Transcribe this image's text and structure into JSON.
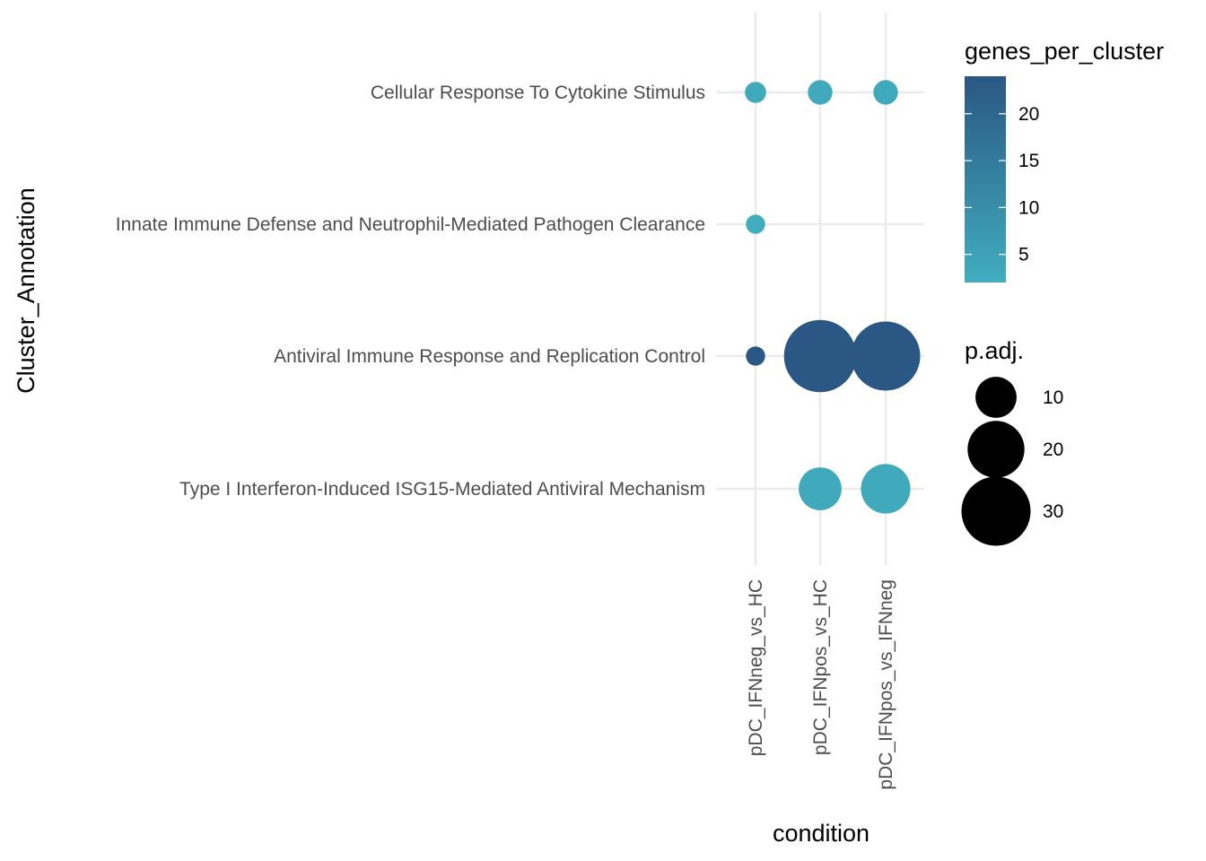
{
  "chart_data": {
    "type": "scatter",
    "xlabel": "condition",
    "ylabel": "Cluster_Annotation",
    "x_categories": [
      "pDC_IFNneg_vs_HC",
      "pDC_IFNpos_vs_HC",
      "pDC_IFNpos_vs_IFNneg"
    ],
    "y_categories": [
      "Cellular Response To Cytokine Stimulus",
      "Innate Immune Defense and Neutrophil-Mediated Pathogen Clearance",
      "Antiviral Immune Response and Replication Control",
      "Type I Interferon-Induced ISG15-Mediated Antiviral Mechanism"
    ],
    "points": [
      {
        "x": "pDC_IFNneg_vs_HC",
        "y": "Cellular Response To Cytokine Stimulus",
        "genes_per_cluster": 3,
        "p_adj": 2
      },
      {
        "x": "pDC_IFNpos_vs_HC",
        "y": "Cellular Response To Cytokine Stimulus",
        "genes_per_cluster": 3,
        "p_adj": 3
      },
      {
        "x": "pDC_IFNpos_vs_IFNneg",
        "y": "Cellular Response To Cytokine Stimulus",
        "genes_per_cluster": 3,
        "p_adj": 3
      },
      {
        "x": "pDC_IFNneg_vs_HC",
        "y": "Innate Immune Defense and Neutrophil-Mediated Pathogen Clearance",
        "genes_per_cluster": 2,
        "p_adj": 1.5
      },
      {
        "x": "pDC_IFNneg_vs_HC",
        "y": "Antiviral Immune Response and Replication Control",
        "genes_per_cluster": 24,
        "p_adj": 1.5
      },
      {
        "x": "pDC_IFNpos_vs_HC",
        "y": "Antiviral Immune Response and Replication Control",
        "genes_per_cluster": 24,
        "p_adj": 33
      },
      {
        "x": "pDC_IFNpos_vs_IFNneg",
        "y": "Antiviral Immune Response and Replication Control",
        "genes_per_cluster": 24,
        "p_adj": 30
      },
      {
        "x": "pDC_IFNpos_vs_HC",
        "y": "Type I Interferon-Induced ISG15-Mediated Antiviral Mechanism",
        "genes_per_cluster": 3,
        "p_adj": 11
      },
      {
        "x": "pDC_IFNpos_vs_IFNneg",
        "y": "Type I Interferon-Induced ISG15-Mediated Antiviral Mechanism",
        "genes_per_cluster": 3,
        "p_adj": 15
      }
    ],
    "color_legend": {
      "title": "genes_per_cluster",
      "range": [
        2,
        24
      ],
      "breaks": [
        5,
        10,
        15,
        20
      ],
      "break_labels": [
        "5",
        "10",
        "15",
        "20"
      ],
      "low_color": "#41adbf",
      "high_color": "#2a5783"
    },
    "size_legend": {
      "title": "p.adj.",
      "breaks": [
        10,
        20,
        30
      ],
      "break_labels": [
        "10",
        "20",
        "30"
      ],
      "color": "#000000"
    },
    "grid": true,
    "legend_position": "right"
  }
}
